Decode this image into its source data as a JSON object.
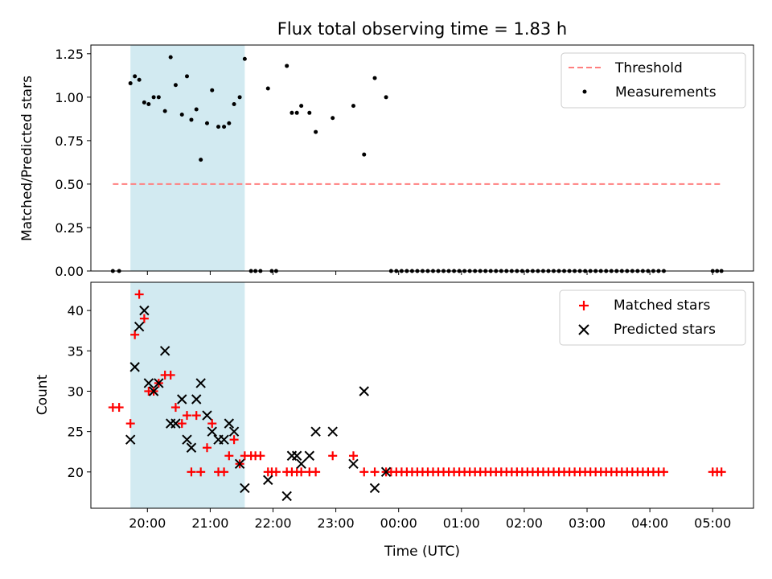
{
  "figure": {
    "title": "Flux total observing time = 1.83 h",
    "xlabel": "Time (UTC)"
  },
  "chart_data": [
    {
      "type": "scatter",
      "ylabel": "Matched/Predicted stars",
      "ylim": [
        0,
        1.3
      ],
      "yticks": [
        "0.00",
        "0.25",
        "0.50",
        "0.75",
        "1.00",
        "1.25"
      ],
      "ytick_values": [
        0,
        0.25,
        0.5,
        0.75,
        1.0,
        1.25
      ],
      "x_axis": "time (hours after 00:00 of first night; ticks labeled in UTC)",
      "xlim": [
        19.1,
        29.65
      ],
      "xticks": [
        "20:00",
        "21:00",
        "22:00",
        "23:00",
        "00:00",
        "01:00",
        "02:00",
        "03:00",
        "04:00",
        "05:00"
      ],
      "xtick_values": [
        20,
        21,
        22,
        23,
        24,
        25,
        26,
        27,
        28,
        29
      ],
      "shaded_span": [
        19.73,
        21.55
      ],
      "shaded_color": "#add8e6",
      "legend_position": "upper right",
      "series": [
        {
          "name": "Threshold",
          "style": "dashed-line",
          "color": "#ff7f7f",
          "x": [
            19.45,
            29.15
          ],
          "y": [
            0.5,
            0.5
          ]
        },
        {
          "name": "Measurements",
          "style": "dot",
          "color": "#000000",
          "x": [
            19.45,
            19.55,
            19.73,
            19.8,
            19.87,
            19.95,
            20.02,
            20.1,
            20.18,
            20.28,
            20.37,
            20.45,
            20.55,
            20.63,
            20.7,
            20.78,
            20.85,
            20.95,
            21.03,
            21.13,
            21.22,
            21.3,
            21.38,
            21.47,
            21.55,
            21.65,
            21.72,
            21.8,
            21.92,
            21.98,
            22.05,
            22.22,
            22.3,
            22.38,
            22.45,
            22.58,
            22.68,
            22.95,
            23.28,
            23.45,
            23.62,
            23.8
          ],
          "y": [
            0.0,
            0.0,
            1.08,
            1.12,
            1.1,
            0.97,
            0.96,
            1.0,
            1.0,
            0.92,
            1.23,
            1.07,
            0.9,
            1.12,
            0.87,
            0.93,
            0.64,
            0.85,
            1.04,
            0.83,
            0.83,
            0.85,
            0.96,
            1.0,
            1.22,
            0.0,
            0.0,
            0.0,
            1.05,
            0.0,
            0.0,
            1.18,
            0.91,
            0.91,
            0.95,
            0.91,
            0.8,
            0.88,
            0.95,
            0.67,
            1.11,
            1.0
          ]
        }
      ]
    },
    {
      "type": "scatter",
      "ylabel": "Count",
      "ylim": [
        15.5,
        43.5
      ],
      "yticks": [
        "20",
        "25",
        "30",
        "35",
        "40"
      ],
      "ytick_values": [
        20,
        25,
        30,
        35,
        40
      ],
      "legend_position": "upper right",
      "series": [
        {
          "name": "Matched stars",
          "style": "plus",
          "color": "#ff0000",
          "x": [
            19.45,
            19.55,
            19.73,
            19.8,
            19.87,
            19.95,
            20.02,
            20.1,
            20.18,
            20.28,
            20.37,
            20.45,
            20.55,
            20.63,
            20.7,
            20.78,
            20.85,
            20.95,
            21.03,
            21.13,
            21.22,
            21.3,
            21.38,
            21.47,
            21.55,
            21.65,
            21.72,
            21.8,
            21.92,
            21.98,
            22.05,
            22.22,
            22.3,
            22.38,
            22.45,
            22.58,
            22.68,
            22.95,
            23.28,
            23.45,
            23.62,
            23.8
          ],
          "y": [
            28,
            28,
            26,
            37,
            42,
            39,
            30,
            30,
            31,
            32,
            32,
            28,
            26,
            27,
            20,
            27,
            20,
            23,
            26,
            20,
            20,
            22,
            24,
            21,
            22,
            22,
            22,
            22,
            20,
            20,
            20,
            20,
            20,
            20,
            20,
            20,
            20,
            22,
            22,
            20,
            20,
            20
          ]
        },
        {
          "name": "Predicted stars",
          "style": "x",
          "color": "#000000",
          "x": [
            19.73,
            19.8,
            19.87,
            19.95,
            20.02,
            20.1,
            20.18,
            20.28,
            20.37,
            20.45,
            20.55,
            20.63,
            20.7,
            20.78,
            20.85,
            20.95,
            21.03,
            21.13,
            21.22,
            21.3,
            21.38,
            21.47,
            21.55,
            21.92,
            22.22,
            22.3,
            22.38,
            22.45,
            22.58,
            22.68,
            22.95,
            23.28,
            23.45,
            23.62,
            23.8
          ],
          "y": [
            24,
            33,
            38,
            40,
            31,
            30,
            31,
            35,
            26,
            26,
            29,
            24,
            23,
            29,
            31,
            27,
            25,
            24,
            24,
            26,
            25,
            21,
            18,
            19,
            17,
            22,
            22,
            21,
            22,
            25,
            25,
            21,
            30,
            18,
            20
          ]
        }
      ]
    }
  ],
  "dense_tail": {
    "x_start": 23.88,
    "x_end": 28.3,
    "step": 0.0835,
    "late_x": [
      29.0,
      29.07,
      29.14
    ],
    "ratio_value": 0.0,
    "count_value": 20
  }
}
